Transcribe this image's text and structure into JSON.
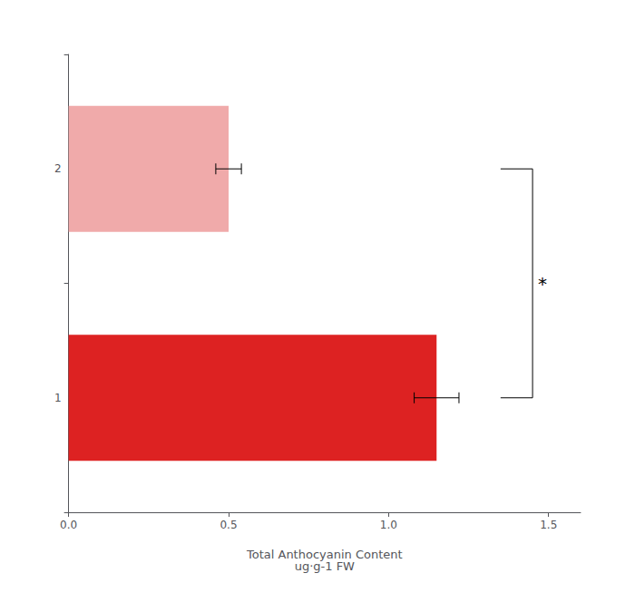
{
  "chart_data": {
    "type": "bar",
    "orientation": "horizontal",
    "categories": [
      "1",
      "2"
    ],
    "values": [
      1.15,
      0.5
    ],
    "colors": [
      "#dd2222",
      "#f0aaaa"
    ],
    "errors": [
      0.07,
      0.04
    ],
    "xlabel": "Total Anthocyanin Content\nug·g-1 FW",
    "xlim": [
      0,
      1.6
    ],
    "xticks": [
      {
        "value": 0,
        "label": "0.0"
      },
      0.5,
      {
        "value": 1,
        "label": "1.0"
      },
      1.5
    ],
    "annotations": [
      {
        "text": "*",
        "x": [
          1.35,
          1.45
        ],
        "between": [
          "1",
          "2"
        ]
      }
    ],
    "grid": false
  }
}
